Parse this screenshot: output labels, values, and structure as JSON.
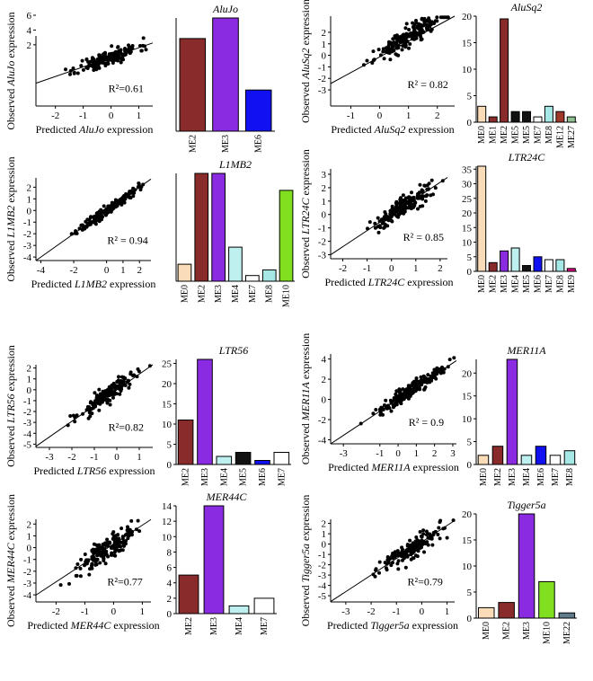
{
  "colors": {
    "ME0": "#fbdcb8",
    "ME1": "#8a2b2b",
    "ME2": "#8a2b2b",
    "ME3": "#8a2be2",
    "ME4": "#bff0f0",
    "ME5": "#111111",
    "ME6": "#1010f0",
    "ME7": "#ffffff",
    "ME8": "#a6e8e6",
    "ME9": "#e00080",
    "ME10": "#80e020",
    "ME12": "#a0382a",
    "ME22": "#607b8b",
    "ME27": "#90c090"
  },
  "chart_data": [
    {
      "id": "alujo",
      "element": "AluJo",
      "scatter": {
        "type": "scatter",
        "x_prefix": "Predicted ",
        "x_suffix": " expression",
        "y_prefix": "Observed ",
        "y_suffix": " expression",
        "xlim": [
          -2.7,
          1.5
        ],
        "ylim": [
          -6.3,
          3.2
        ],
        "xticks": [
          -2,
          -1,
          0,
          1
        ],
        "yticks": [
          6,
          4,
          2
        ],
        "r2_label": "R²=0.61",
        "fit": {
          "slope": 1.3,
          "intercept": 0.3
        },
        "n_points": 160,
        "noise": 0.55,
        "seed": 11
      },
      "bars": {
        "type": "bar",
        "title": "AluJo",
        "categories": [
          "ME2",
          "ME3",
          "ME6"
        ],
        "values": [
          9,
          11,
          4
        ],
        "ylim": [
          0,
          11
        ],
        "yticks": [],
        "narrow": false
      }
    },
    {
      "id": "alusq2",
      "element": "AluSq2",
      "scatter": {
        "type": "scatter",
        "x_prefix": "Predicted ",
        "x_suffix": " expression",
        "y_prefix": "Observed ",
        "y_suffix": " expression",
        "xlim": [
          -1.7,
          2.6
        ],
        "ylim": [
          -4.4,
          3.4
        ],
        "xticks": [
          -1,
          0,
          1,
          2
        ],
        "yticks": [
          2,
          1,
          0,
          -1,
          -2,
          -3
        ],
        "r2_label": "R² = 0.82",
        "fit": {
          "slope": 1.5,
          "intercept": 0.1
        },
        "n_points": 180,
        "noise": 0.4,
        "seed": 23
      },
      "bars": {
        "type": "bar",
        "title": "AluSq2",
        "categories": [
          "ME0",
          "ME1",
          "ME2",
          "ME5",
          "ME5",
          "ME7",
          "ME8",
          "ME12",
          "ME27"
        ],
        "values": [
          3,
          1,
          19.5,
          2,
          2,
          1,
          3,
          2,
          1
        ],
        "ylim": [
          0,
          20
        ],
        "yticks": [
          0,
          5,
          10,
          15,
          20
        ],
        "narrow": true
      }
    },
    {
      "id": "l1mb2",
      "element": "L1MB2",
      "scatter": {
        "type": "scatter",
        "x_prefix": "Predicted ",
        "x_suffix": " expression",
        "y_prefix": "Observed ",
        "y_suffix": " expression",
        "xlim": [
          -4.3,
          2.7
        ],
        "ylim": [
          -4.3,
          2.8
        ],
        "xticks": [
          -4,
          -2,
          0,
          1,
          2
        ],
        "yticks": [
          2,
          1,
          0,
          -1,
          -2,
          -3,
          -4
        ],
        "r2_label": "R² = 0.94",
        "fit": {
          "slope": 1.0,
          "intercept": 0.0
        },
        "n_points": 170,
        "noise": 0.22,
        "seed": 37
      },
      "bars": {
        "type": "bar",
        "title": "L1MB2",
        "categories": [
          "ME0",
          "ME2",
          "ME3",
          "ME4",
          "ME7",
          "ME8",
          "ME10"
        ],
        "values": [
          3,
          19,
          19,
          6,
          1,
          2,
          16
        ],
        "ylim": [
          0,
          19
        ],
        "yticks": [],
        "narrow": false
      }
    },
    {
      "id": "ltr24c",
      "element": "LTR24C",
      "scatter": {
        "type": "scatter",
        "x_prefix": "Predicted ",
        "x_suffix": " expression",
        "y_prefix": "Observed ",
        "y_suffix": " expression",
        "xlim": [
          -2.5,
          2.3
        ],
        "ylim": [
          -3.3,
          3.4
        ],
        "xticks": [
          -2,
          -1,
          0,
          1,
          2
        ],
        "yticks": [
          3,
          2,
          1,
          0,
          -1,
          -2,
          -3
        ],
        "r2_label": "R² = 0.85",
        "fit": {
          "slope": 1.2,
          "intercept": 0.0
        },
        "n_points": 170,
        "noise": 0.35,
        "seed": 41
      },
      "bars": {
        "type": "bar",
        "title": "LTR24C",
        "categories": [
          "ME0",
          "ME2",
          "ME3",
          "ME4",
          "ME5",
          "ME6",
          "ME7",
          "ME8",
          "ME9"
        ],
        "values": [
          36,
          3,
          7,
          8,
          2,
          5,
          4,
          4,
          1
        ],
        "ylim": [
          0,
          36
        ],
        "yticks": [
          0,
          5,
          10,
          15,
          20,
          25,
          30,
          35
        ],
        "narrow": true
      }
    },
    {
      "id": "ltr56",
      "element": "LTR56",
      "scatter": {
        "type": "scatter",
        "x_prefix": "Predicted ",
        "x_suffix": " expression",
        "y_prefix": "Observed ",
        "y_suffix": " expression",
        "xlim": [
          -3.6,
          1.6
        ],
        "ylim": [
          -5.3,
          2.3
        ],
        "xticks": [
          -3,
          -2,
          -1,
          0,
          1
        ],
        "yticks": [
          2,
          1,
          0,
          -1,
          -2,
          -3,
          -4,
          -5
        ],
        "r2_label": "R²=0.82",
        "fit": {
          "slope": 1.5,
          "intercept": 0.2
        },
        "n_points": 170,
        "noise": 0.4,
        "seed": 53
      },
      "bars": {
        "type": "bar",
        "title": "LTR56",
        "categories": [
          "ME2",
          "ME3",
          "ME4",
          "ME5",
          "ME6",
          "ME7"
        ],
        "values": [
          11,
          26,
          2,
          3,
          1,
          3
        ],
        "ylim": [
          0,
          26
        ],
        "yticks": [
          0,
          5,
          10,
          15,
          20,
          25
        ],
        "narrow": false
      }
    },
    {
      "id": "mer11a",
      "element": "MER11A",
      "scatter": {
        "type": "scatter",
        "x_prefix": "Predicted ",
        "x_suffix": " expression",
        "y_prefix": "Observed ",
        "y_suffix": " expression",
        "xlim": [
          -3.7,
          3.2
        ],
        "ylim": [
          -4.4,
          4.5
        ],
        "xticks": [
          -3,
          -1,
          0,
          1,
          2,
          3
        ],
        "yticks": [
          4,
          2,
          0,
          -2,
          -4
        ],
        "r2_label": "R² = 0.9",
        "fit": {
          "slope": 1.2,
          "intercept": 0.0
        },
        "n_points": 170,
        "noise": 0.35,
        "seed": 67
      },
      "bars": {
        "type": "bar",
        "title": "MER11A",
        "categories": [
          "ME0",
          "ME2",
          "ME3",
          "ME4",
          "ME6",
          "ME7",
          "ME8"
        ],
        "values": [
          2,
          4,
          23,
          2,
          4,
          2,
          3
        ],
        "ylim": [
          0,
          23
        ],
        "yticks": [
          0,
          5,
          10,
          15,
          20
        ],
        "narrow": true
      }
    },
    {
      "id": "mer44c",
      "element": "MER44C",
      "scatter": {
        "type": "scatter",
        "x_prefix": "Predicted ",
        "x_suffix": " expression",
        "y_prefix": "Observed ",
        "y_suffix": " expression",
        "xlim": [
          -2.7,
          1.3
        ],
        "ylim": [
          -4.6,
          2.4
        ],
        "xticks": [
          -2,
          -1,
          0,
          1
        ],
        "yticks": [
          2,
          1,
          0,
          -1,
          -2,
          -3,
          -4
        ],
        "r2_label": "R²=0.77",
        "fit": {
          "slope": 1.6,
          "intercept": 0.3
        },
        "n_points": 170,
        "noise": 0.5,
        "seed": 79
      },
      "bars": {
        "type": "bar",
        "title": "MER44C",
        "categories": [
          "ME2",
          "ME3",
          "ME4",
          "ME7"
        ],
        "values": [
          5,
          14,
          1,
          2
        ],
        "ylim": [
          0,
          14
        ],
        "yticks": [
          0,
          2,
          4,
          6,
          8,
          10,
          12,
          14
        ],
        "narrow": false
      }
    },
    {
      "id": "tigger5a",
      "element": "Tigger5a",
      "scatter": {
        "type": "scatter",
        "x_prefix": "Predicted ",
        "x_suffix": " expression",
        "y_prefix": "Observed ",
        "y_suffix": " expression",
        "xlim": [
          -3.6,
          1.3
        ],
        "ylim": [
          -5.6,
          2.4
        ],
        "xticks": [
          -3,
          -2,
          -1,
          0,
          1
        ],
        "yticks": [
          2,
          1,
          0,
          -1,
          -2,
          -3,
          -4,
          -5
        ],
        "r2_label": "R²=0.79",
        "fit": {
          "slope": 1.6,
          "intercept": 0.2
        },
        "n_points": 170,
        "noise": 0.5,
        "seed": 97
      },
      "bars": {
        "type": "bar",
        "title": "Tigger5a",
        "categories": [
          "ME0",
          "ME2",
          "ME3",
          "ME10",
          "ME22"
        ],
        "values": [
          2,
          3,
          20,
          7,
          1
        ],
        "ylim": [
          0,
          20
        ],
        "yticks": [
          0,
          5,
          10,
          15,
          20
        ],
        "narrow": false
      }
    }
  ]
}
